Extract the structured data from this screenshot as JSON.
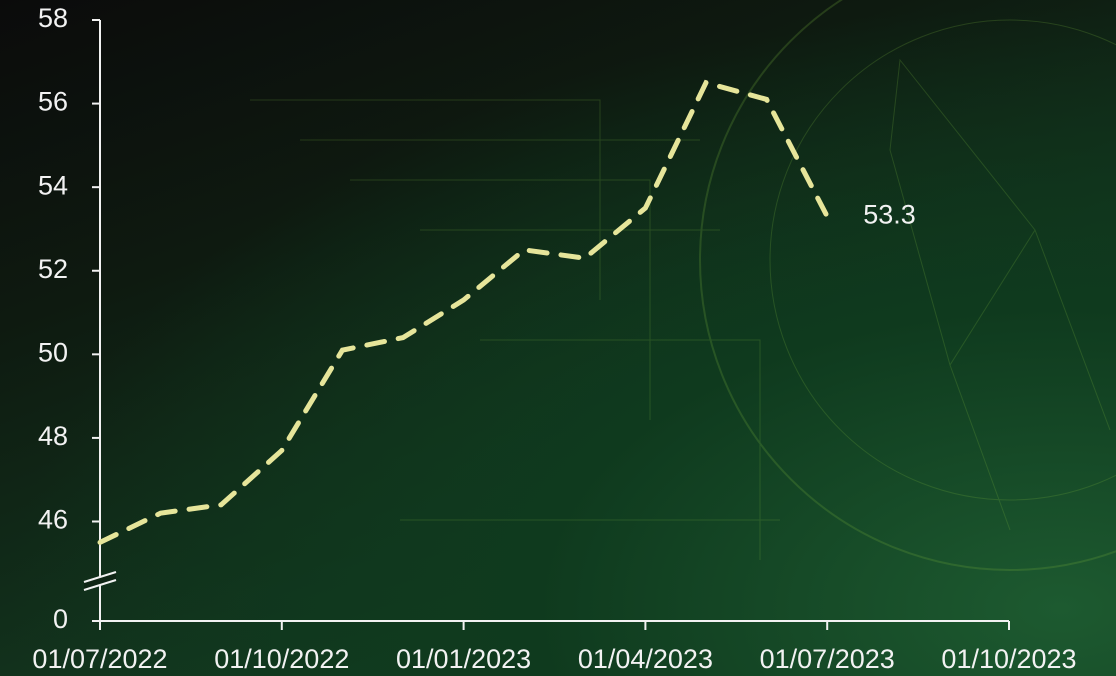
{
  "chart_data": {
    "type": "line",
    "x": [
      "01/07/2022",
      "01/08/2022",
      "01/09/2022",
      "01/10/2022",
      "01/11/2022",
      "01/12/2022",
      "01/01/2023",
      "01/02/2023",
      "01/03/2023",
      "01/04/2023",
      "01/05/2023",
      "01/06/2023",
      "01/07/2023"
    ],
    "values": [
      45.5,
      46.2,
      46.4,
      47.7,
      50.1,
      50.4,
      51.3,
      52.5,
      52.3,
      53.5,
      56.5,
      56.1,
      53.3
    ],
    "color": "#e6e59a",
    "line_style": "dashed",
    "xlim": [
      "01/07/2022",
      "01/10/2023"
    ],
    "xticks": [
      "01/07/2022",
      "01/10/2022",
      "01/01/2023",
      "01/04/2023",
      "01/07/2023",
      "01/10/2023"
    ],
    "ylim": [
      0,
      58
    ],
    "y_break": [
      0,
      44.6
    ],
    "yticks": [
      0,
      46,
      48,
      50,
      52,
      54,
      56,
      58
    ],
    "label_last_point": true
  }
}
